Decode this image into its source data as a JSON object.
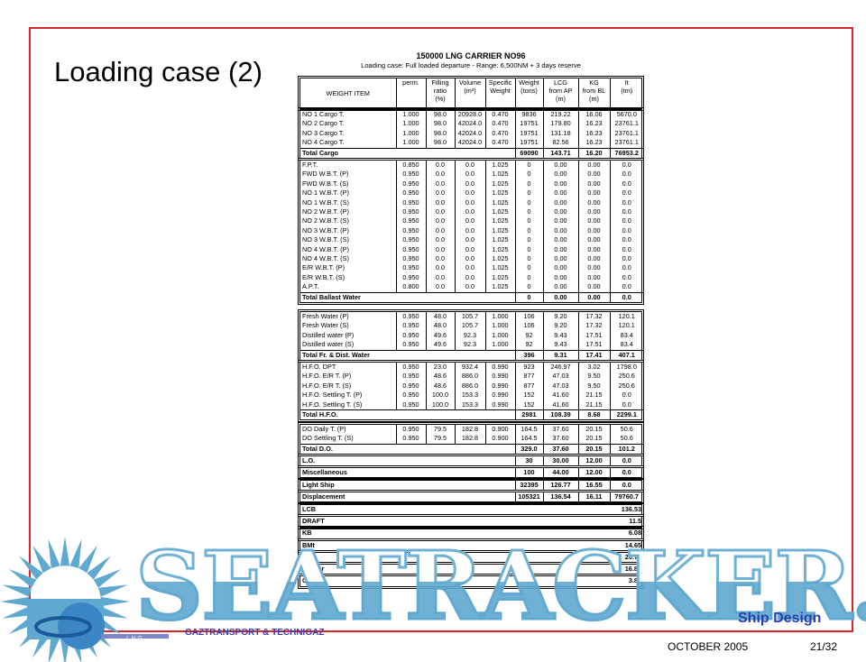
{
  "slide": {
    "title": "Loading case (2)",
    "date": "OCTOBER 2005",
    "page": "21/32",
    "company": "GAZTRANSPORT & TECHNIGAZ",
    "logo_text": "L N G",
    "tagline": "Ship Design",
    "watermark": "SEATRACKER.RU",
    "frame_color": "#d9262c",
    "watermark_color": "#5fa8cf"
  },
  "doc": {
    "title": "150000 LNG CARRIER NO96",
    "subtitle": "Loading case: Full loaded departure - Range: 6,500NM + 3 days reserve"
  },
  "header": [
    [
      "WEIGHT ITEM"
    ],
    [
      "perm."
    ],
    [
      "Filling",
      "ratio",
      "(%)"
    ],
    [
      "Volume",
      "",
      "(m³)"
    ],
    [
      "Specific",
      "Weight",
      ""
    ],
    [
      "Weight",
      "",
      "(tons)"
    ],
    [
      "LCG",
      "from AP",
      "(m)"
    ],
    [
      "KG",
      "from BL",
      "(m)"
    ],
    [
      "It",
      "",
      "(tm)"
    ]
  ],
  "groups": [
    {
      "rows": [
        [
          "NO 1 Cargo T.",
          "1.000",
          "98.0",
          "20928.0",
          "0.470",
          "9836",
          "219.22",
          "16.06",
          "5670.0"
        ],
        [
          "NO 2 Cargo T.",
          "1.000",
          "98.0",
          "42024.0",
          "0.470",
          "19751",
          "179.80",
          "16.23",
          "23761.1"
        ],
        [
          "NO 3 Cargo T.",
          "1.000",
          "98.0",
          "42024.0",
          "0.470",
          "19751",
          "131.18",
          "16.23",
          "23761.1"
        ],
        [
          "NO 4 Cargo T.",
          "1.000",
          "98.0",
          "42024.0",
          "0.470",
          "19751",
          "82.56",
          "16.23",
          "23761.1"
        ]
      ],
      "total": [
        "Total Cargo",
        "69090",
        "143.71",
        "16.20",
        "76953.2"
      ]
    },
    {
      "rows": [
        [
          "F.P.T.",
          "0.850",
          "0.0",
          "0.0",
          "1.025",
          "0",
          "0.00",
          "0.00",
          "0.0"
        ],
        [
          "FWD W.B.T. (P)",
          "0.950",
          "0.0",
          "0.0",
          "1.025",
          "0",
          "0.00",
          "0.00",
          "0.0"
        ],
        [
          "FWD W.B.T. (S)",
          "0.950",
          "0.0",
          "0.0",
          "1.025",
          "0",
          "0.00",
          "0.00",
          "0.0"
        ],
        [
          "NO 1 W.B.T. (P)",
          "0.950",
          "0.0",
          "0.0",
          "1.025",
          "0",
          "0.00",
          "0.00",
          "0.0"
        ],
        [
          "NO 1 W.B.T. (S)",
          "0.950",
          "0.0",
          "0.0",
          "1.025",
          "0",
          "0.00",
          "0.00",
          "0.0"
        ],
        [
          "NO 2 W.B.T. (P)",
          "0.950",
          "0.0",
          "0.0",
          "1.025",
          "0",
          "0.00",
          "0.00",
          "0.0"
        ],
        [
          "NO 2 W.B.T. (S)",
          "0.950",
          "0.0",
          "0.0",
          "1.025",
          "0",
          "0.00",
          "0.00",
          "0.0"
        ],
        [
          "NO 3 W.B.T. (P)",
          "0.950",
          "0.0",
          "0.0",
          "1.025",
          "0",
          "0.00",
          "0.00",
          "0.0"
        ],
        [
          "NO 3 W.B.T. (S)",
          "0.950",
          "0.0",
          "0.0",
          "1.025",
          "0",
          "0.00",
          "0.00",
          "0.0"
        ],
        [
          "NO 4 W.B.T. (P)",
          "0.950",
          "0.0",
          "0.0",
          "1.025",
          "0",
          "0.00",
          "0.00",
          "0.0"
        ],
        [
          "NO 4 W.B.T. (S)",
          "0.950",
          "0.0",
          "0.0",
          "1.025",
          "0",
          "0.00",
          "0.00",
          "0.0"
        ],
        [
          "E/R W.B.T. (P)",
          "0.950",
          "0.0",
          "0.0",
          "1.025",
          "0",
          "0.00",
          "0.00",
          "0.0"
        ],
        [
          "E/R W.B.T. (S)",
          "0.950",
          "0.0",
          "0.0",
          "1.025",
          "0",
          "0.00",
          "0.00",
          "0.0"
        ],
        [
          "A.P.T.",
          "0.800",
          "0.0",
          "0.0",
          "1.025",
          "0",
          "0.00",
          "0.00",
          "0.0"
        ]
      ],
      "total": [
        "Total  Ballast Water",
        "0",
        "0.00",
        "0.00",
        "0.0"
      ]
    },
    {
      "rows": [
        [
          "Fresh Water (P)",
          "0.950",
          "48.0",
          "105.7",
          "1.000",
          "106",
          "9.20",
          "17.32",
          "120.1"
        ],
        [
          "Fresh Water (S)",
          "0.950",
          "48.0",
          "105.7",
          "1.000",
          "106",
          "9.20",
          "17.32",
          "120.1"
        ],
        [
          "Distilled water (P)",
          "0.950",
          "49.6",
          "92.3",
          "1.000",
          "92",
          "9.43",
          "17.51",
          "83.4"
        ],
        [
          "Distilled water (S)",
          "0.950",
          "49.6",
          "92.3",
          "1.000",
          "92",
          "9.43",
          "17.51",
          "83.4"
        ]
      ],
      "total": [
        "Total Fr. & Dist. Water",
        "396",
        "9.31",
        "17.41",
        "407.1"
      ]
    },
    {
      "rows": [
        [
          "H.F.O. DPT",
          "0.950",
          "23.0",
          "932.4",
          "0.990",
          "923",
          "246.97",
          "3.02",
          "1798.0"
        ],
        [
          "H.F.O. E/R T. (P)",
          "0.950",
          "48.6",
          "886.0",
          "0.990",
          "877",
          "47.03",
          "9.50",
          "250.6"
        ],
        [
          "H.F.O. E/R T. (S)",
          "0.950",
          "48.6",
          "886.0",
          "0.990",
          "877",
          "47.03",
          "9.50",
          "250.6"
        ],
        [
          "H.F.O. Settling T. (P)",
          "0.950",
          "100.0",
          "153.3",
          "0.990",
          "152",
          "41.60",
          "21.15",
          "0.0"
        ],
        [
          "H.F.O. Settling T. (S)",
          "0.950",
          "100.0",
          "153.3",
          "0.990",
          "152",
          "41.60",
          "21.15",
          "0.0"
        ]
      ],
      "total": [
        "Total H.F.O.",
        "2981",
        "108.39",
        "8.68",
        "2299.1"
      ]
    },
    {
      "rows": [
        [
          "DO Daily T. (P)",
          "0.950",
          "79.5",
          "182.8",
          "0.900",
          "164.5",
          "37.60",
          "20.15",
          "50.6"
        ],
        [
          "DO Settling T. (S)",
          "0.950",
          "79.5",
          "182.8",
          "0.900",
          "164.5",
          "37.60",
          "20.15",
          "50.6"
        ]
      ],
      "total": [
        "Total D.O.",
        "329.0",
        "37.60",
        "20.15",
        "101.2"
      ]
    }
  ],
  "singles": [
    [
      "L.O.",
      "30",
      "30.00",
      "12.00",
      "0.0"
    ],
    [
      "Miscellaneous",
      "100",
      "44.00",
      "12.00",
      "0.0"
    ],
    [
      "Light Ship",
      "32395",
      "126.77",
      "16.55",
      "0.0"
    ],
    [
      "Displacement",
      "105321",
      "136.54",
      "16.11",
      "79760.7"
    ]
  ],
  "summary": [
    [
      "LCB",
      "136.53"
    ],
    [
      "DRAFT",
      "11.5"
    ],
    [
      "KB",
      "6.08"
    ],
    [
      "BMt",
      "14.65"
    ],
    [
      "KMt",
      "20.72"
    ],
    [
      "KG cor",
      "16.87"
    ],
    [
      "GM",
      "3.86"
    ]
  ]
}
